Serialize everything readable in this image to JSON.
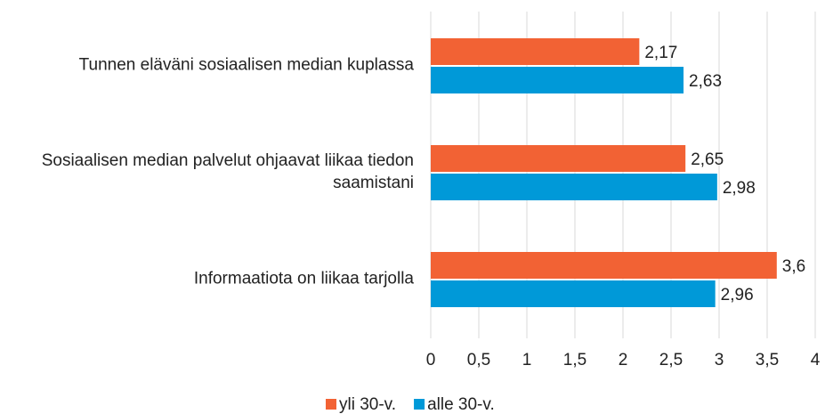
{
  "chart_data": {
    "type": "barh",
    "categories": [
      "Tunnen eläväni sosiaalisen median kuplassa",
      "Sosiaalisen median palvelut ohjaavat liikaa tiedon saamistani",
      "Informaatiota on liikaa tarjolla"
    ],
    "series": [
      {
        "name": "yli 30-v.",
        "color": "#f26234",
        "values": [
          2.17,
          2.65,
          3.6
        ],
        "value_labels": [
          "2,17",
          "2,65",
          "3,6"
        ]
      },
      {
        "name": "alle 30-v.",
        "color": "#0099d8",
        "values": [
          2.63,
          2.98,
          2.96
        ],
        "value_labels": [
          "2,63",
          "2,98",
          "2,96"
        ]
      }
    ],
    "xlim": [
      0,
      4
    ],
    "xticks": [
      0,
      {
        "value": 0.5,
        "label": "0,5"
      },
      1,
      {
        "value": 1.5,
        "label": "1,5"
      },
      2,
      {
        "value": 2.5,
        "label": "2,5"
      },
      3,
      {
        "value": 3.5,
        "label": "3,5"
      },
      4
    ],
    "grid": true,
    "legend": "bottom"
  }
}
